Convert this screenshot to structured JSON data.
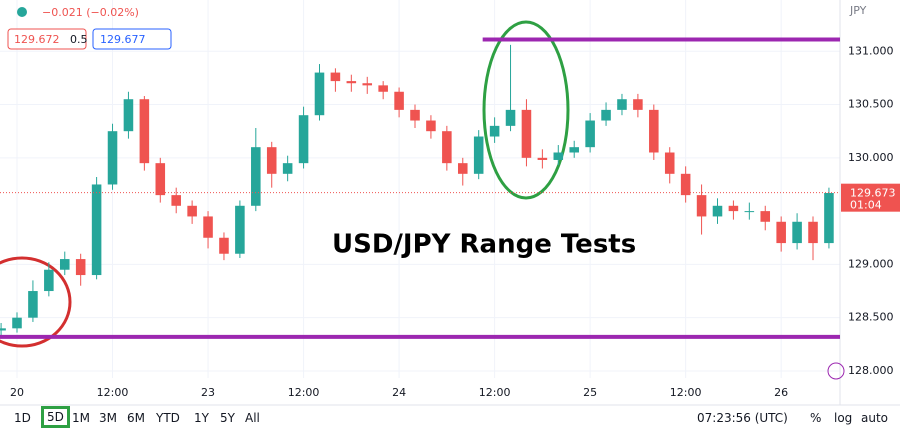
{
  "header": {
    "change": "−0.021 (−0.02%)",
    "bid": "129.672",
    "spread": "0.5",
    "ask": "129.677",
    "currency": "JPY"
  },
  "chart_data": {
    "type": "candlestick",
    "annotation": "USD/JPY Range Tests",
    "x": [
      -2,
      0,
      2,
      4,
      6,
      8,
      10,
      12,
      14,
      16,
      18,
      20,
      22,
      24,
      26,
      28,
      30,
      32,
      34,
      36,
      38,
      40,
      42,
      44,
      46,
      48,
      50,
      52,
      54,
      56,
      58,
      60,
      62,
      64,
      66,
      68,
      70,
      72,
      74,
      76,
      78,
      80,
      82,
      84,
      86,
      88,
      90,
      92,
      94,
      96,
      98,
      100,
      102
    ],
    "open": [
      128.38,
      128.4,
      128.5,
      128.75,
      128.95,
      129.05,
      128.9,
      129.75,
      130.25,
      130.55,
      129.95,
      129.65,
      129.55,
      129.45,
      129.25,
      129.1,
      129.55,
      130.1,
      129.85,
      129.95,
      130.4,
      130.8,
      130.72,
      130.7,
      130.68,
      130.62,
      130.45,
      130.35,
      130.25,
      129.95,
      129.85,
      130.2,
      130.3,
      130.45,
      130.0,
      129.98,
      130.05,
      130.1,
      130.35,
      130.45,
      130.55,
      130.45,
      130.05,
      129.85,
      129.65,
      129.45,
      129.55,
      129.5,
      129.5,
      129.4,
      129.2,
      129.4,
      129.2
    ],
    "high": [
      128.45,
      128.55,
      128.85,
      129.02,
      129.12,
      129.1,
      129.82,
      130.32,
      130.62,
      130.58,
      130.0,
      129.72,
      129.6,
      129.5,
      129.3,
      129.6,
      130.28,
      130.15,
      130.02,
      130.48,
      130.88,
      130.84,
      130.78,
      130.76,
      130.72,
      130.66,
      130.5,
      130.4,
      130.3,
      130.0,
      130.26,
      130.38,
      131.06,
      130.55,
      130.08,
      130.12,
      130.16,
      130.42,
      130.52,
      130.6,
      130.6,
      130.5,
      130.1,
      129.92,
      129.75,
      129.62,
      129.6,
      129.58,
      129.55,
      129.45,
      129.48,
      129.45,
      129.72
    ],
    "low": [
      128.33,
      128.36,
      128.46,
      128.7,
      128.9,
      128.8,
      128.86,
      129.7,
      130.18,
      129.88,
      129.58,
      129.48,
      129.38,
      129.15,
      129.04,
      129.06,
      129.5,
      129.72,
      129.78,
      129.9,
      130.35,
      130.62,
      130.62,
      130.6,
      130.55,
      130.38,
      130.28,
      130.18,
      129.88,
      129.74,
      129.8,
      130.14,
      130.25,
      129.92,
      129.9,
      129.93,
      130.0,
      130.05,
      130.3,
      130.4,
      130.38,
      129.98,
      129.76,
      129.58,
      129.28,
      129.38,
      129.42,
      129.42,
      129.32,
      129.12,
      129.14,
      129.04,
      129.15
    ],
    "close": [
      128.4,
      128.5,
      128.75,
      128.95,
      129.05,
      128.9,
      129.75,
      130.25,
      130.55,
      129.95,
      129.65,
      129.55,
      129.45,
      129.25,
      129.1,
      129.55,
      130.1,
      129.85,
      129.95,
      130.4,
      130.8,
      130.72,
      130.7,
      130.68,
      130.62,
      130.45,
      130.35,
      130.25,
      129.95,
      129.85,
      130.2,
      130.3,
      130.45,
      130.0,
      129.98,
      130.05,
      130.1,
      130.35,
      130.45,
      130.55,
      130.45,
      130.05,
      129.85,
      129.65,
      129.45,
      129.55,
      129.5,
      129.5,
      129.4,
      129.2,
      129.4,
      129.2,
      129.67
    ],
    "up_color": "#26a69a",
    "down_color": "#ef5350",
    "xlim": [
      -2.136,
      103.39
    ],
    "ylim": [
      127.934,
      131.481
    ],
    "xticks": [
      {
        "value": 0,
        "label": "20"
      },
      {
        "value": 12,
        "label": "12:00"
      },
      {
        "value": 24,
        "label": "23"
      },
      {
        "value": 36,
        "label": "12:00"
      },
      {
        "value": 48,
        "label": "24"
      },
      {
        "value": 60,
        "label": "12:00"
      },
      {
        "value": 72,
        "label": "25"
      },
      {
        "value": 84,
        "label": "12:00"
      },
      {
        "value": 96,
        "label": "26"
      }
    ],
    "yticks": [
      {
        "value": 131,
        "label": "131.000"
      },
      {
        "value": 130.5,
        "label": "130.500"
      },
      {
        "value": 130,
        "label": "130.000"
      },
      {
        "value": 129,
        "label": "129.000"
      },
      {
        "value": 128.5,
        "label": "128.500"
      },
      {
        "value": 128,
        "label": "128.000"
      }
    ],
    "grid": true,
    "levels": [
      {
        "value": 131.11,
        "from": 58.5,
        "color": "#9c27b0"
      },
      {
        "value": 128.32,
        "from": -2.136,
        "color": "#9c27b0"
      }
    ],
    "last_price": {
      "value": 129.673,
      "label": "129.673",
      "countdown": "01:04",
      "color": "#ef5350"
    }
  },
  "toolbar": {
    "ranges": [
      "1D",
      "5D",
      "1M",
      "3M",
      "6M",
      "YTD",
      "1Y",
      "5Y",
      "All"
    ],
    "selected": 1,
    "time": "07:23:56 (UTC)",
    "percent": "%",
    "log": "log",
    "auto": "auto"
  }
}
